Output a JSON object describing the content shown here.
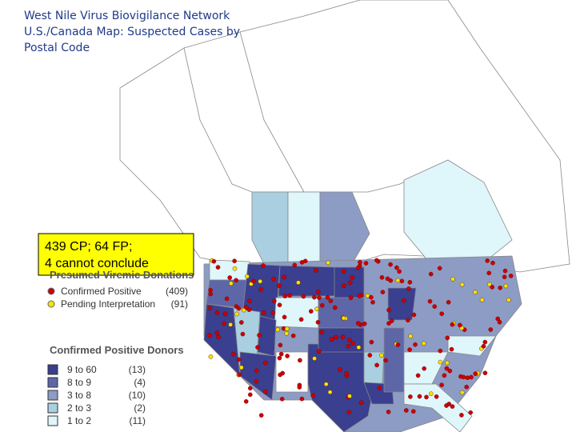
{
  "header": {
    "title_lines": [
      "West Nile Virus Biovigilance Network",
      "U.S./Canada Map: Suspected Cases by",
      "Postal Code"
    ]
  },
  "callout": {
    "lines": [
      "439 CP; 64 FP;",
      "4 cannot conclude"
    ]
  },
  "legend": {
    "donations_title": "Presumed Viremic Donations",
    "donations": [
      {
        "label": "Confirmed Positive",
        "count": "(409)",
        "color": "#cc0000"
      },
      {
        "label": "Pending Interpretation",
        "count": "(91)",
        "color": "#f2e600"
      }
    ],
    "donors_title": "Confirmed Positive Donors",
    "donors": [
      {
        "range": "9 to 60",
        "count": "(13)",
        "color": "#3a3f8f"
      },
      {
        "range": "8 to  9",
        "count": "(4)",
        "color": "#5d67a8"
      },
      {
        "range": "3 to  8",
        "count": "(10)",
        "color": "#8d9cc4"
      },
      {
        "range": "2 to  3",
        "count": "(2)",
        "color": "#a9cfe0"
      },
      {
        "range": "1 to  2",
        "count": "(11)",
        "color": "#dff6fb"
      }
    ]
  }
}
